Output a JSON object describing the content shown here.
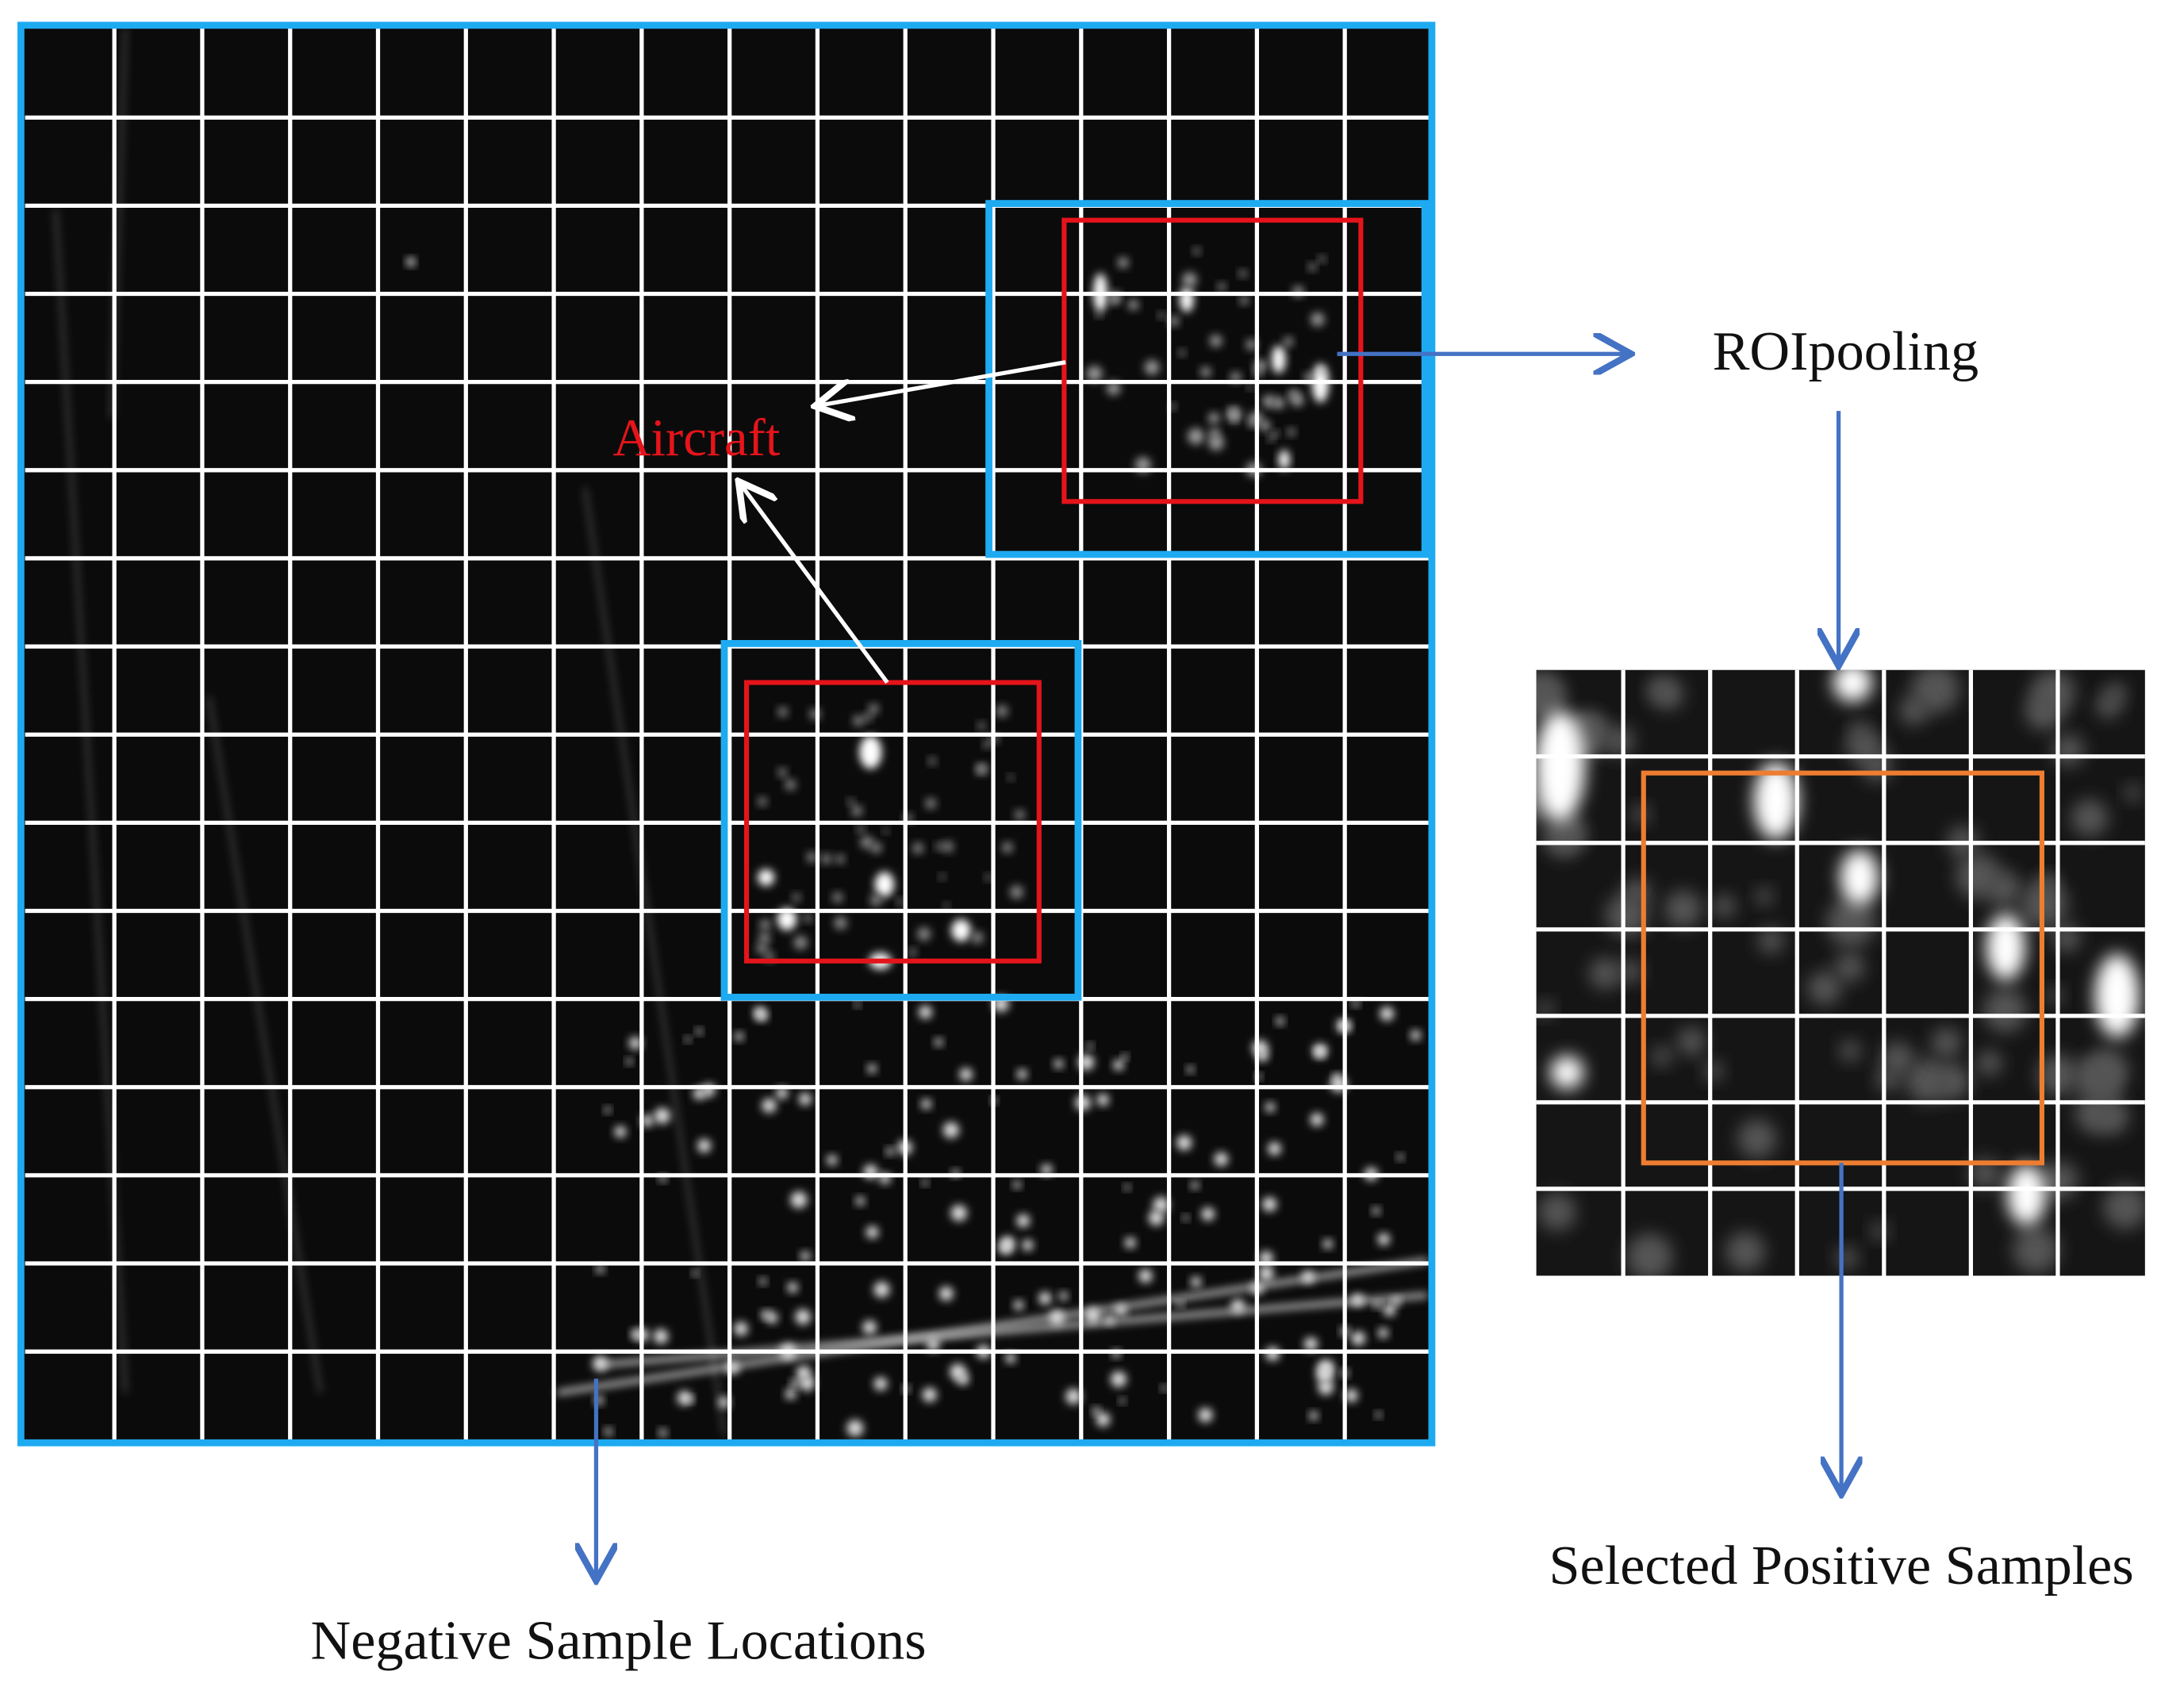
{
  "labels": {
    "aircraft": "Aircraft",
    "roi_pooling": "ROIpooling",
    "selected_positive": "Selected Positive Samples",
    "negative_locations": "Negative Sample Locations"
  }
}
